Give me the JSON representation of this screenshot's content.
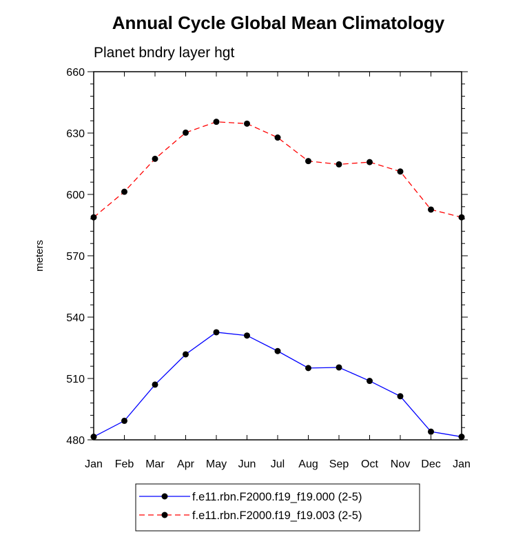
{
  "chart_data": {
    "type": "line",
    "title": "Annual Cycle Global Mean Climatology",
    "subtitle": "Planet bndry layer hgt",
    "xlabel": "",
    "ylabel": "meters",
    "categories": [
      "Jan",
      "Feb",
      "Mar",
      "Apr",
      "May",
      "Jun",
      "Jul",
      "Aug",
      "Sep",
      "Oct",
      "Nov",
      "Dec",
      "Jan"
    ],
    "ylim": [
      480,
      660
    ],
    "yticks": [
      480,
      510,
      540,
      570,
      600,
      630,
      660
    ],
    "series": [
      {
        "name": "f.e11.rbn.F2000.f19_f19.000 (2-5)",
        "color": "#0000ff",
        "dash": "solid",
        "values": [
          481.5,
          489.3,
          507.0,
          521.8,
          532.6,
          531.0,
          523.4,
          515.1,
          515.4,
          508.8,
          501.3,
          484.0,
          481.5
        ]
      },
      {
        "name": "f.e11.rbn.F2000.f19_f19.003 (2-5)",
        "color": "#ff0000",
        "dash": "dashed",
        "values": [
          588.8,
          601.3,
          617.4,
          630.2,
          635.5,
          634.6,
          627.8,
          616.3,
          614.7,
          615.8,
          611.2,
          592.6,
          588.8
        ]
      }
    ],
    "marker": "filled-circle",
    "marker_color": "#000000",
    "legend_position": "bottom-center"
  }
}
